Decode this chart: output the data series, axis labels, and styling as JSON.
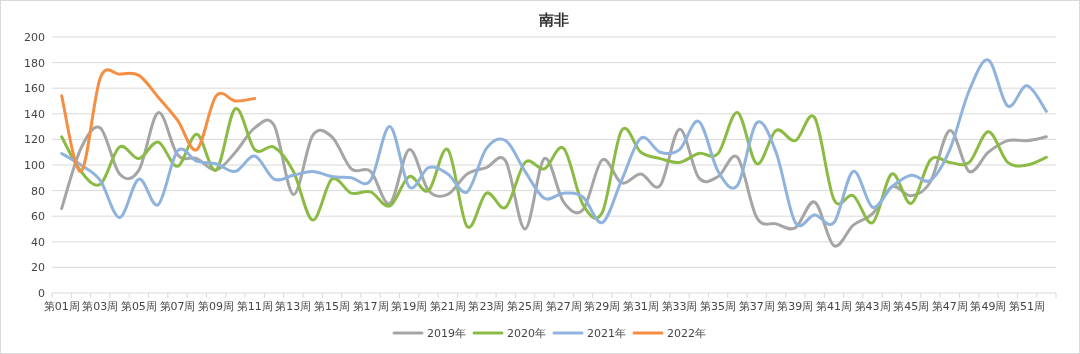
{
  "chart_data": {
    "type": "line",
    "title": "南非",
    "categories": [
      "第01周",
      null,
      "第03周",
      null,
      "第05周",
      null,
      "第07周",
      null,
      "第09周",
      null,
      "第11周",
      null,
      "第13周",
      null,
      "第15周",
      null,
      "第17周",
      null,
      "第19周",
      null,
      "第21周",
      null,
      "第23周",
      null,
      "第25周",
      null,
      "第27周",
      null,
      "第29周",
      null,
      "第31周",
      null,
      "第33周",
      null,
      "第35周",
      null,
      "第37周",
      null,
      "第39周",
      null,
      "第41周",
      null,
      "第43周",
      null,
      "第45周",
      null,
      "第47周",
      null,
      "第49周",
      null,
      "第51周",
      null
    ],
    "ylim": [
      0,
      200
    ],
    "yticks": [
      0,
      20,
      40,
      60,
      80,
      100,
      120,
      140,
      160,
      180,
      200
    ],
    "grid": "y",
    "legend": "bottom",
    "marker": "none",
    "line_style": "solid",
    "series": [
      {
        "name": "2019年",
        "color": "#a5a5a5",
        "values": [
          66,
          113,
          129,
          93,
          96,
          141,
          108,
          105,
          96,
          110,
          129,
          131,
          77,
          123,
          122,
          97,
          95,
          70,
          112,
          80,
          77,
          93,
          98,
          103,
          50,
          105,
          71,
          65,
          104,
          86,
          93,
          84,
          128,
          90,
          91,
          106,
          59,
          54,
          51,
          71,
          37,
          53,
          62,
          83,
          76,
          87,
          127,
          95,
          110,
          119,
          119,
          122
        ]
      },
      {
        "name": "2020年",
        "color": "#8cbb45",
        "values": [
          122,
          95,
          85,
          114,
          105,
          118,
          99,
          124,
          96,
          144,
          112,
          114,
          95,
          57,
          89,
          78,
          79,
          68,
          91,
          80,
          112,
          52,
          78,
          67,
          102,
          97,
          113,
          69,
          63,
          127,
          110,
          105,
          102,
          109,
          109,
          141,
          101,
          127,
          119,
          137,
          73,
          76,
          55,
          93,
          70,
          104,
          102,
          102,
          126,
          102,
          100,
          106
        ]
      },
      {
        "name": "2021年",
        "color": "#8fb3dc",
        "values": [
          109,
          100,
          88,
          59,
          89,
          69,
          111,
          103,
          101,
          95,
          107,
          89,
          92,
          95,
          91,
          90,
          88,
          130,
          83,
          98,
          93,
          79,
          113,
          119,
          95,
          74,
          78,
          75,
          55,
          88,
          121,
          110,
          112,
          134,
          95,
          84,
          133,
          110,
          55,
          61,
          55,
          95,
          67,
          83,
          92,
          88,
          112,
          158,
          182,
          146,
          162,
          142
        ]
      },
      {
        "name": "2022年",
        "color": "#f58e43",
        "values": [
          154,
          95,
          168,
          171,
          170,
          153,
          135,
          112,
          154,
          150,
          152,
          null,
          null,
          null,
          null,
          null,
          null,
          null,
          null,
          null,
          null,
          null,
          null,
          null,
          null,
          null,
          null,
          null,
          null,
          null,
          null,
          null,
          null,
          null,
          null,
          null,
          null,
          null,
          null,
          null,
          null,
          null,
          null,
          null,
          null,
          null,
          null,
          null,
          null,
          null,
          null,
          null
        ]
      }
    ]
  }
}
